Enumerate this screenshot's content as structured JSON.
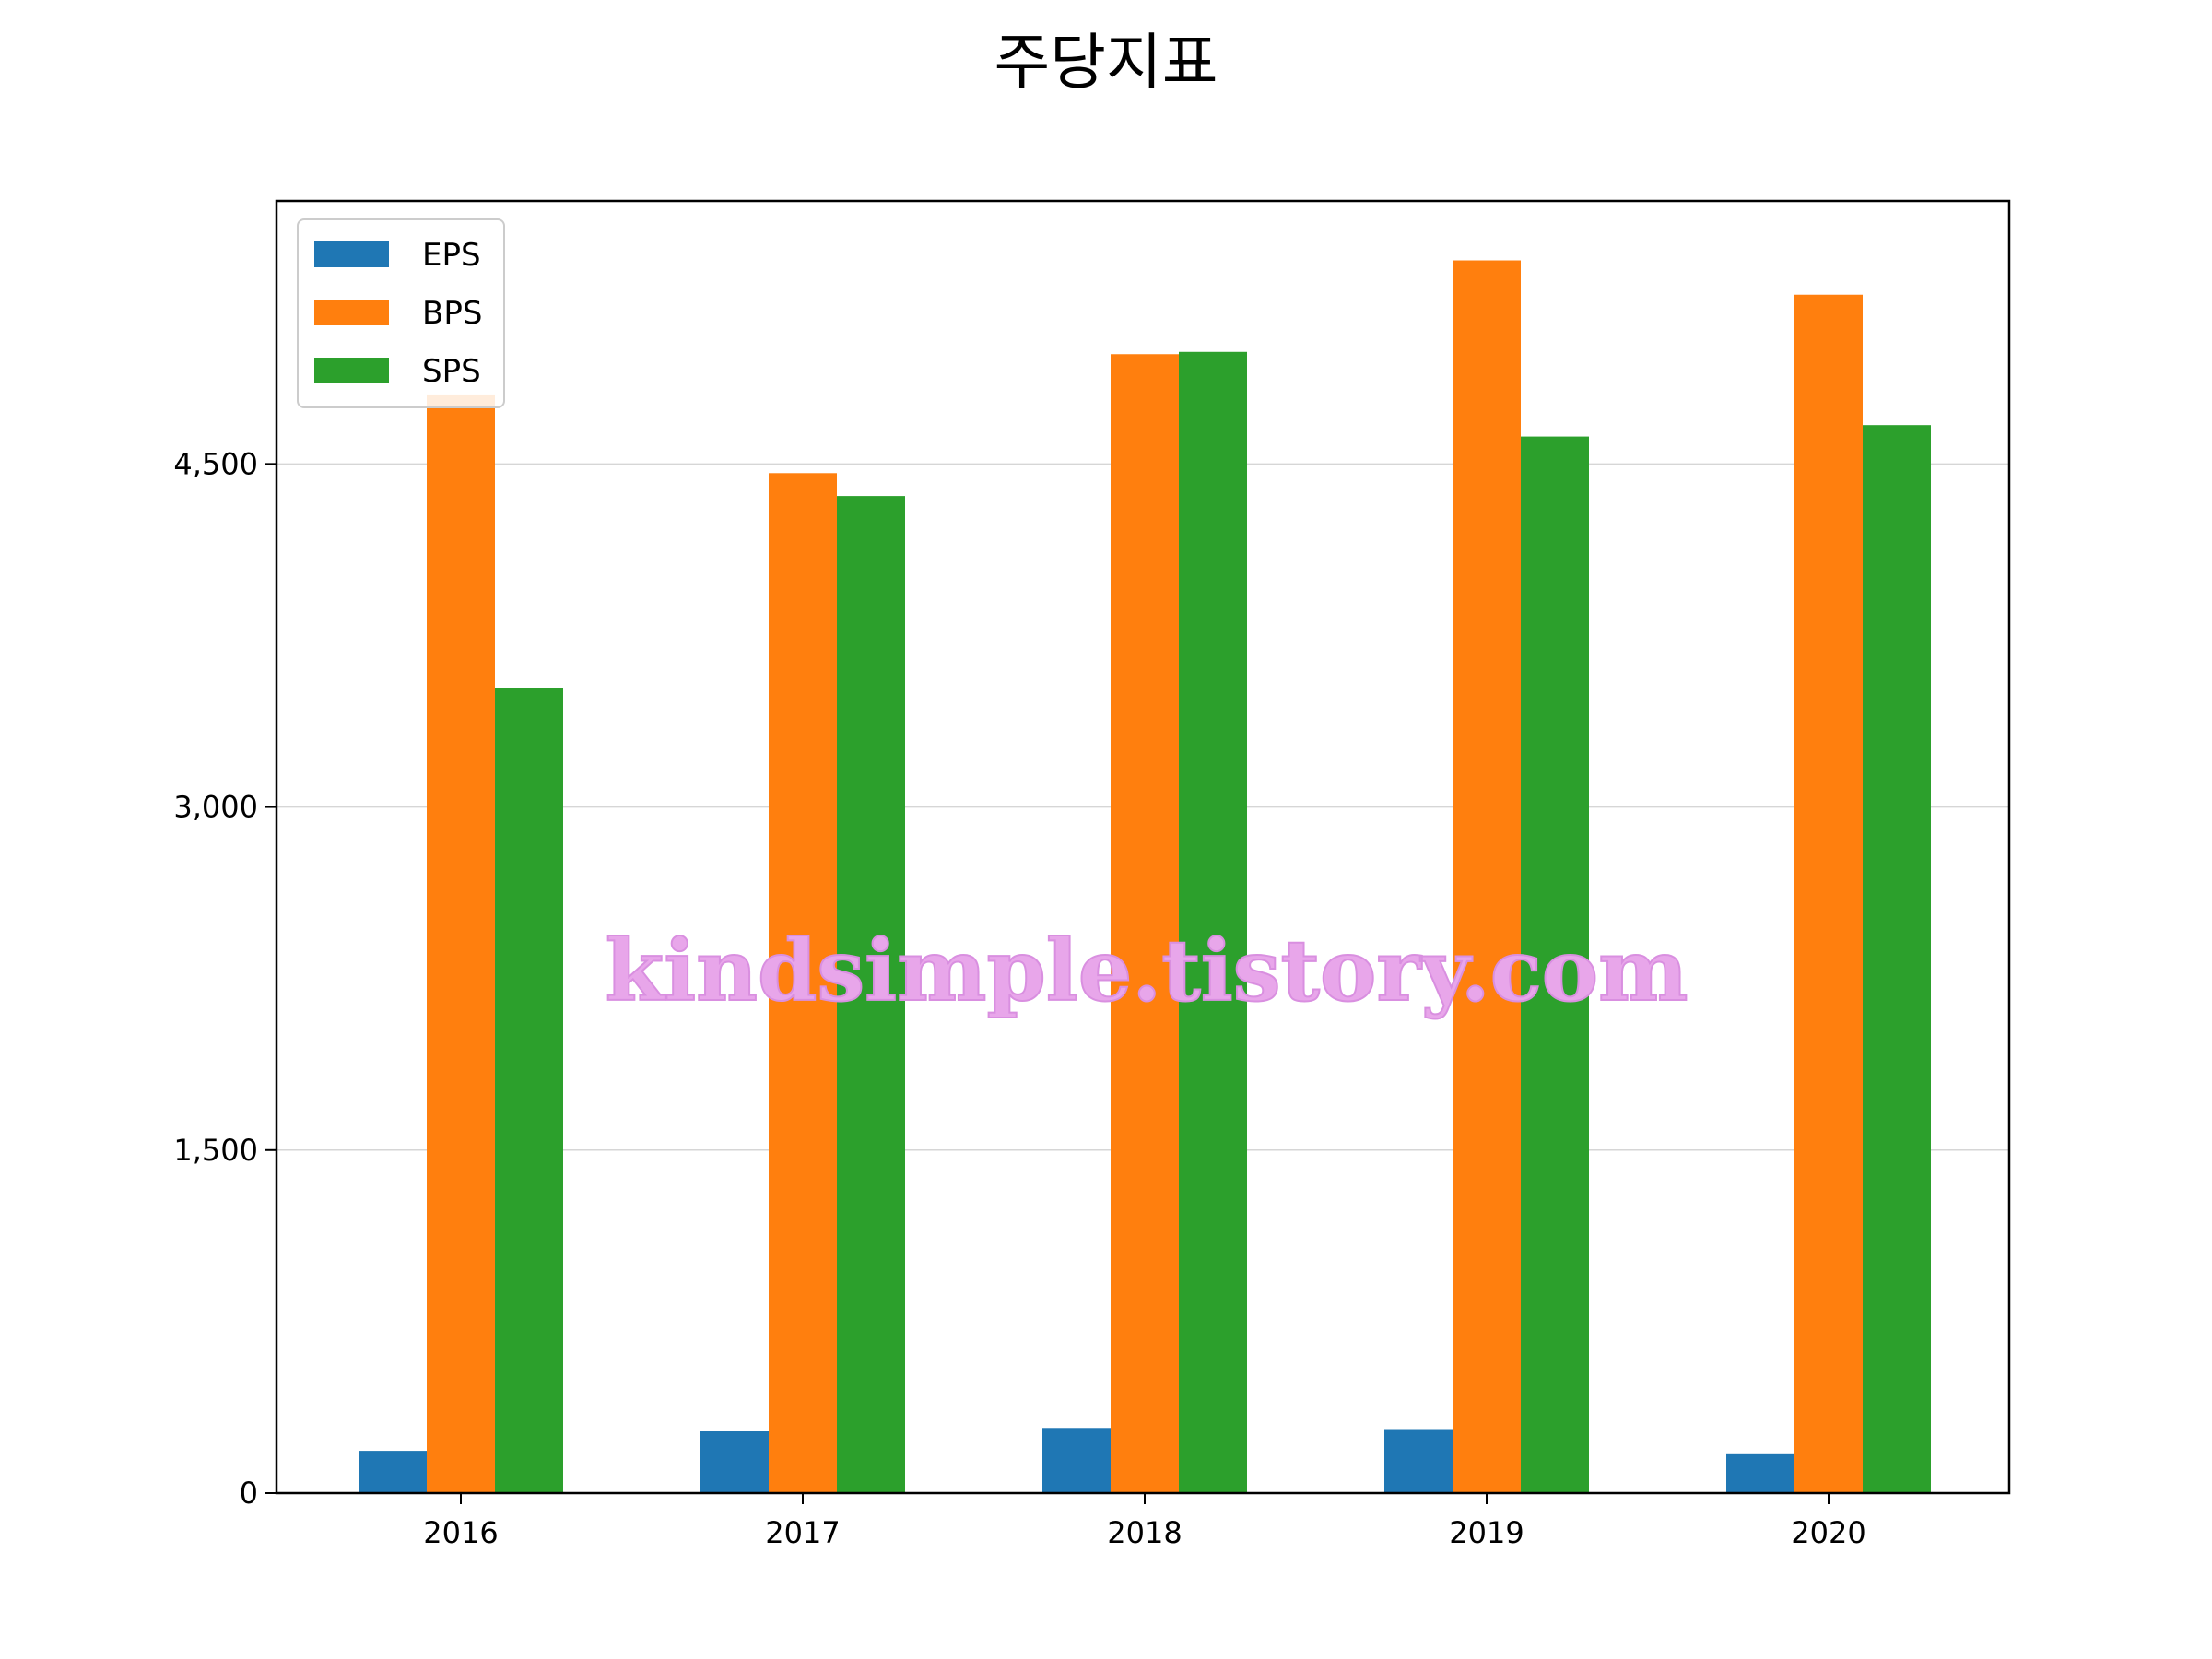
{
  "chart_data": {
    "type": "bar",
    "title": "주당지표",
    "categories": [
      "2016",
      "2017",
      "2018",
      "2019",
      "2020"
    ],
    "series": [
      {
        "name": "EPS",
        "color": "#1f77b4",
        "values": [
          185,
          270,
          285,
          280,
          170
        ]
      },
      {
        "name": "BPS",
        "color": "#ff7f0e",
        "values": [
          4800,
          4460,
          4980,
          5390,
          5240
        ]
      },
      {
        "name": "SPS",
        "color": "#2ca02c",
        "values": [
          3520,
          4360,
          4990,
          4620,
          4670
        ]
      }
    ],
    "yticks": [
      0,
      1500,
      3000,
      4500
    ],
    "ytick_labels": [
      "0",
      "1,500",
      "3,000",
      "4,500"
    ],
    "ylim": [
      0,
      5650
    ],
    "grid": "horizontal",
    "legend_position": "top-left"
  },
  "watermark": "kindsimple.tistory.com"
}
